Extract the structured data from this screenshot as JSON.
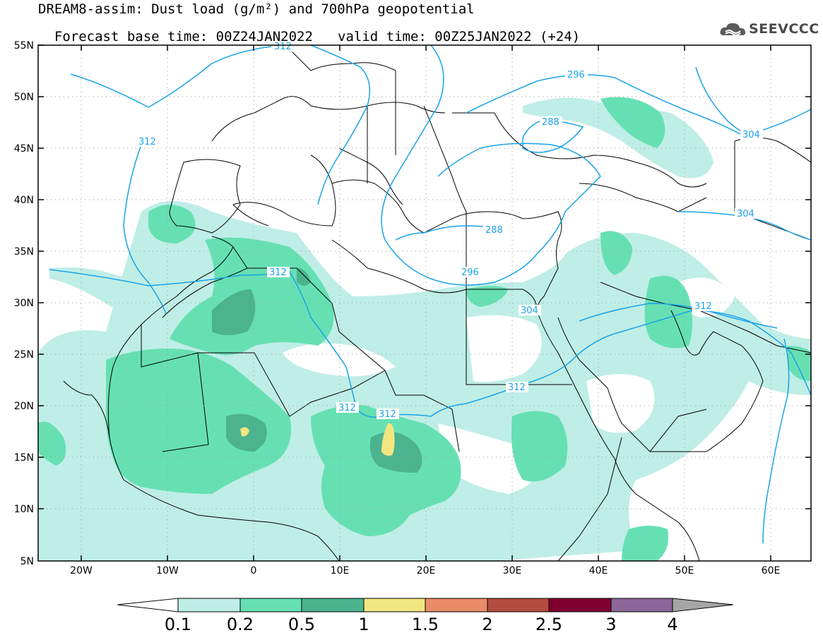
{
  "title": {
    "line1": "DREAM8-assim: Dust load (g/m²) and 700hPa geopotential",
    "base_time": "Forecast base time: 00Z24JAN2022",
    "valid_time": "valid time: 00Z25JAN2022 (+24)"
  },
  "logo": {
    "text": "SEEVCCC",
    "icon": "cloud-icon"
  },
  "map": {
    "lat_ticks": [
      "55N",
      "50N",
      "45N",
      "40N",
      "35N",
      "30N",
      "25N",
      "20N",
      "15N",
      "10N",
      "5N"
    ],
    "lon_ticks": [
      "20W",
      "10W",
      "0",
      "10E",
      "20E",
      "30E",
      "40E",
      "50E",
      "60E"
    ],
    "contour_labels": [
      "312",
      "312",
      "296",
      "288",
      "304",
      "304",
      "288",
      "312",
      "296",
      "304",
      "312",
      "312",
      "312",
      "312"
    ],
    "contour_color": "#1aa3e8",
    "coastline_color": "#000000"
  },
  "colorbar": {
    "labels": [
      "0.1",
      "0.2",
      "0.5",
      "1",
      "1.5",
      "2",
      "2.5",
      "3",
      "4"
    ],
    "colors": [
      "#ffffff",
      "#bfeee6",
      "#66e0b3",
      "#4cb38f",
      "#f2e680",
      "#e88c66",
      "#b34d40",
      "#800030",
      "#8c6699",
      "#a6a6a6"
    ]
  },
  "dust_colors": {
    "light": "#bfeee6",
    "medium": "#66e0b3",
    "dark": "#4cb38f",
    "high": "#f2e680"
  }
}
